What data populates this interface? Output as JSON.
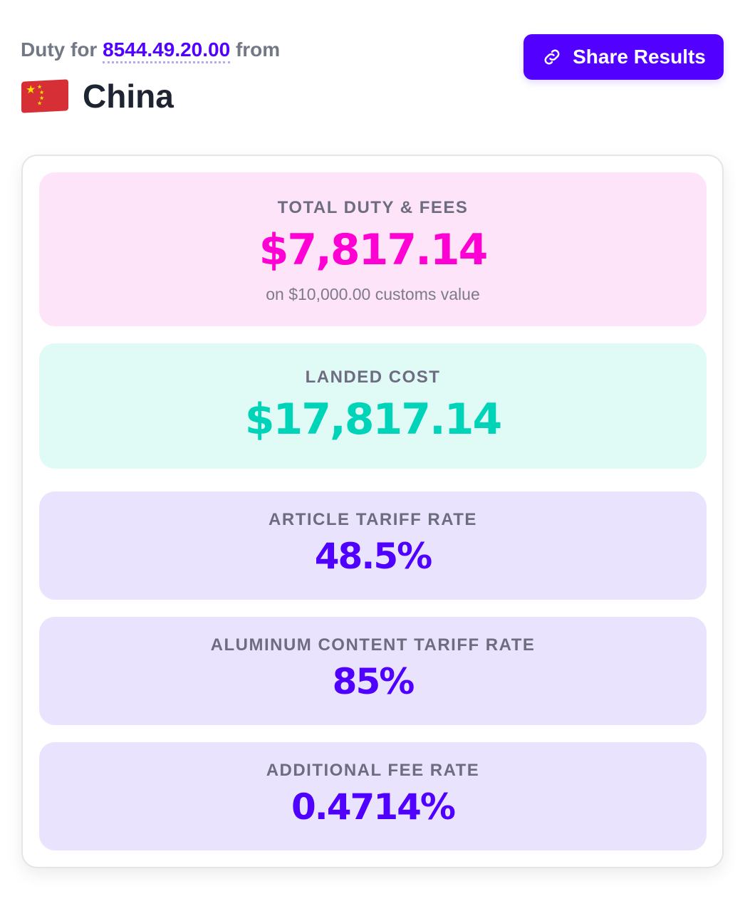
{
  "header": {
    "duty_prefix": "Duty for",
    "hts_code": "8544.49.20.00",
    "duty_suffix": "from",
    "country": "China",
    "share_label": "Share Results"
  },
  "colors": {
    "accent": "#5200ff",
    "total": "#ff00d4",
    "landed": "#00d4b8"
  },
  "results": {
    "total": {
      "label": "TOTAL DUTY & FEES",
      "value": "$7,817.14",
      "note": "on $10,000.00 customs value"
    },
    "landed": {
      "label": "LANDED COST",
      "value": "$17,817.14"
    },
    "article_rate": {
      "label": "ARTICLE TARIFF RATE",
      "value": "48.5%"
    },
    "aluminum_rate": {
      "label": "ALUMINUM CONTENT TARIFF RATE",
      "value": "85%"
    },
    "fee_rate": {
      "label": "ADDITIONAL FEE RATE",
      "value": "0.4714%"
    }
  }
}
